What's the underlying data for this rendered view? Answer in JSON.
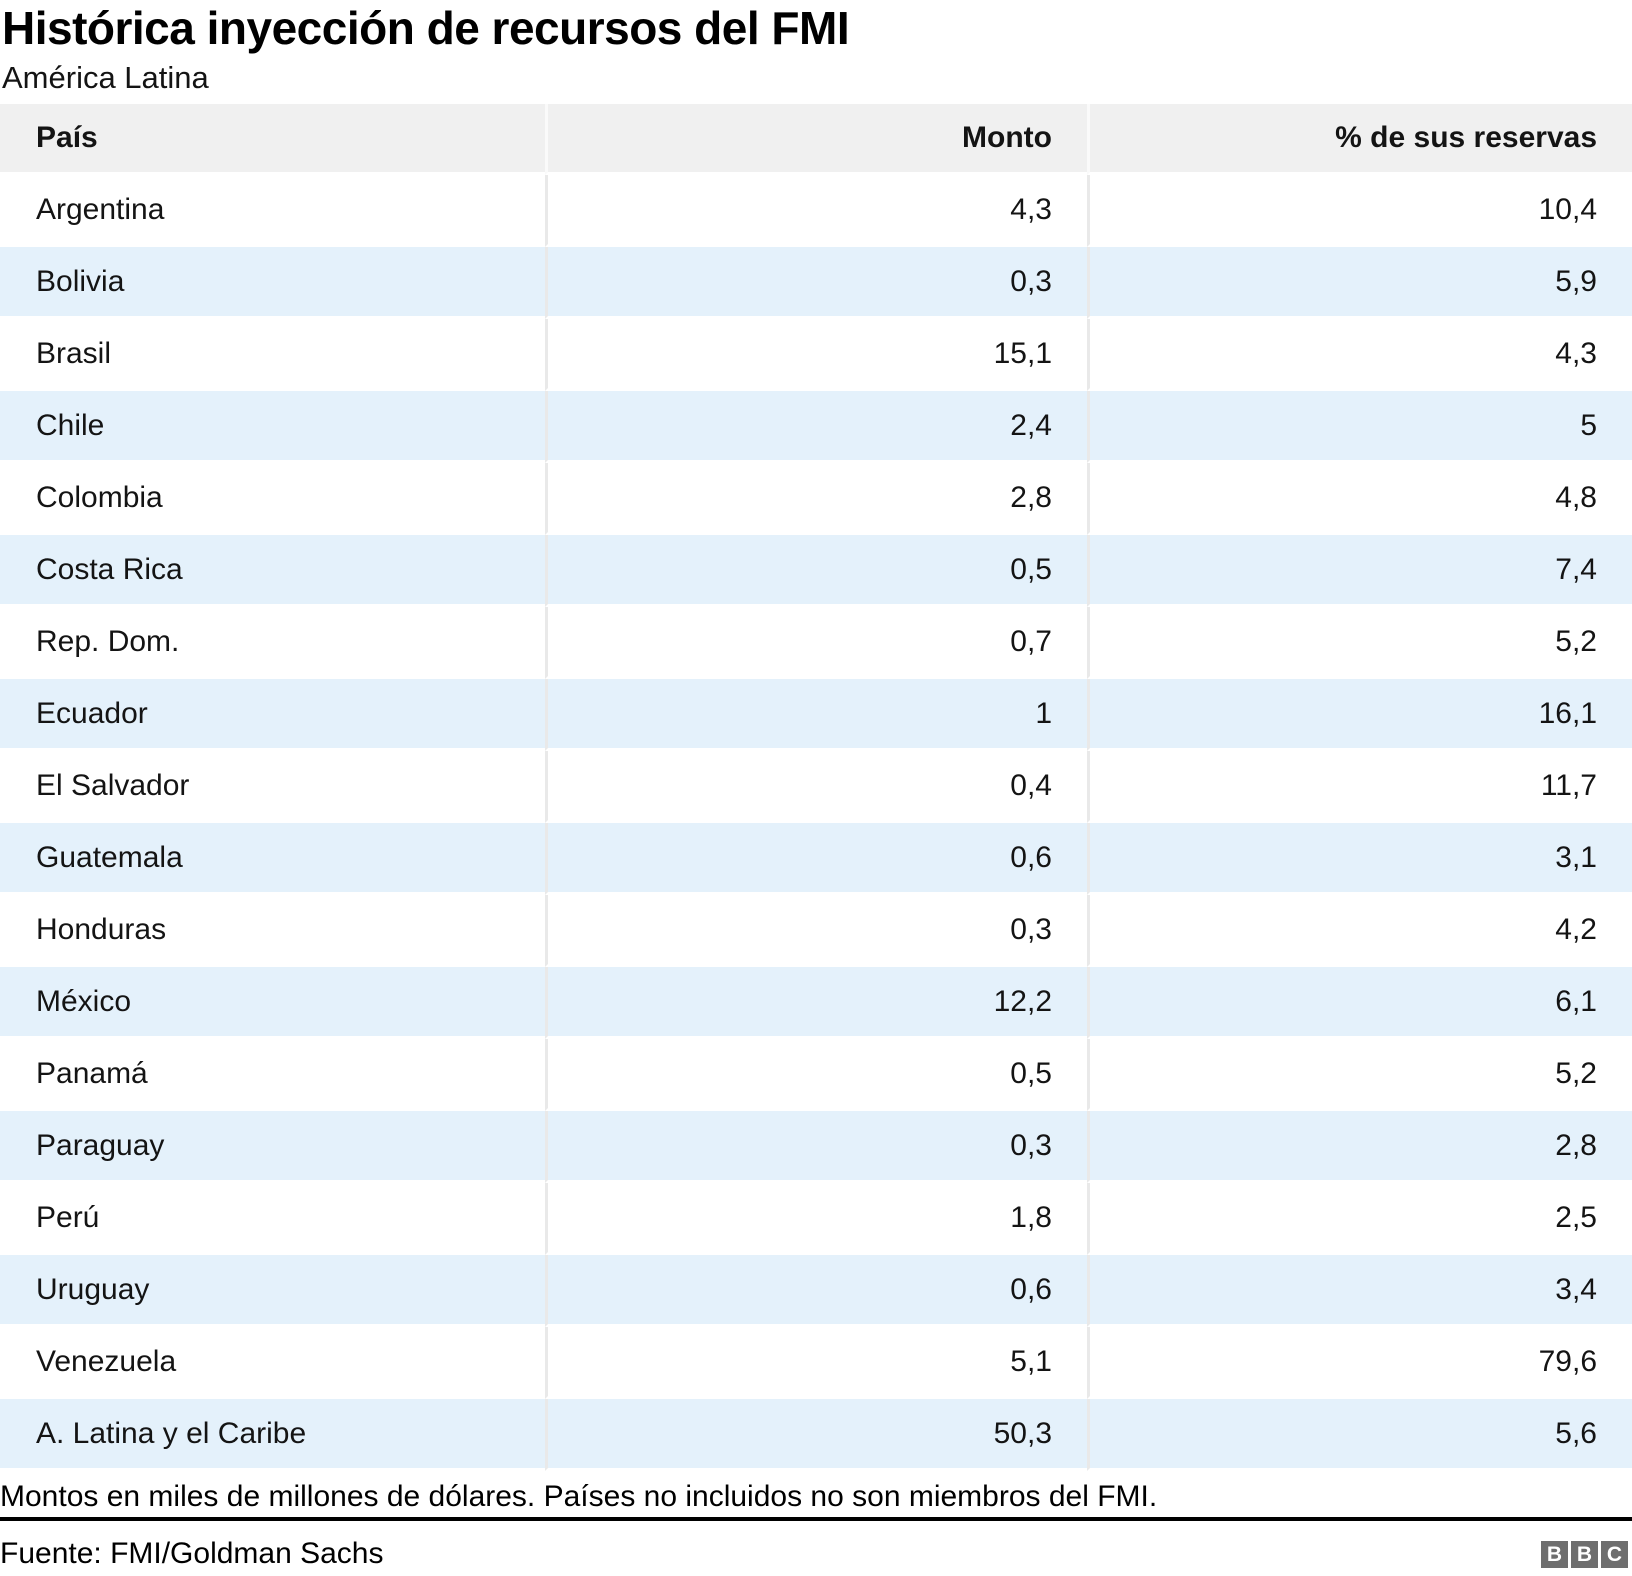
{
  "title": "Histórica inyección de recursos del FMI",
  "subtitle": "América Latina",
  "table": {
    "columns": [
      "País",
      "Monto",
      "% de sus reservas"
    ],
    "rows": [
      {
        "pais": "Argentina",
        "monto": "4,3",
        "reservas": "10,4"
      },
      {
        "pais": "Bolivia",
        "monto": "0,3",
        "reservas": "5,9"
      },
      {
        "pais": "Brasil",
        "monto": "15,1",
        "reservas": "4,3"
      },
      {
        "pais": "Chile",
        "monto": "2,4",
        "reservas": "5"
      },
      {
        "pais": "Colombia",
        "monto": "2,8",
        "reservas": "4,8"
      },
      {
        "pais": "Costa Rica",
        "monto": "0,5",
        "reservas": "7,4"
      },
      {
        "pais": "Rep. Dom.",
        "monto": "0,7",
        "reservas": "5,2"
      },
      {
        "pais": "Ecuador",
        "monto": "1",
        "reservas": "16,1"
      },
      {
        "pais": "El Salvador",
        "monto": "0,4",
        "reservas": "11,7"
      },
      {
        "pais": "Guatemala",
        "monto": "0,6",
        "reservas": "3,1"
      },
      {
        "pais": "Honduras",
        "monto": "0,3",
        "reservas": "4,2"
      },
      {
        "pais": "México",
        "monto": "12,2",
        "reservas": "6,1"
      },
      {
        "pais": "Panamá",
        "monto": "0,5",
        "reservas": "5,2"
      },
      {
        "pais": "Paraguay",
        "monto": "0,3",
        "reservas": "2,8"
      },
      {
        "pais": "Perú",
        "monto": "1,8",
        "reservas": "2,5"
      },
      {
        "pais": "Uruguay",
        "monto": "0,6",
        "reservas": "3,4"
      },
      {
        "pais": "Venezuela",
        "monto": "5,1",
        "reservas": "79,6"
      },
      {
        "pais": "A. Latina y el Caribe",
        "monto": "50,3",
        "reservas": "5,6"
      }
    ]
  },
  "chart_data": {
    "type": "table",
    "title": "Histórica inyección de recursos del FMI",
    "subtitle": "América Latina",
    "columns": [
      "País",
      "Monto",
      "% de sus reservas"
    ],
    "categories": [
      "Argentina",
      "Bolivia",
      "Brasil",
      "Chile",
      "Colombia",
      "Costa Rica",
      "Rep. Dom.",
      "Ecuador",
      "El Salvador",
      "Guatemala",
      "Honduras",
      "México",
      "Panamá",
      "Paraguay",
      "Perú",
      "Uruguay",
      "Venezuela",
      "A. Latina y el Caribe"
    ],
    "series": [
      {
        "name": "Monto",
        "values": [
          4.3,
          0.3,
          15.1,
          2.4,
          2.8,
          0.5,
          0.7,
          1,
          0.4,
          0.6,
          0.3,
          12.2,
          0.5,
          0.3,
          1.8,
          0.6,
          5.1,
          50.3
        ]
      },
      {
        "name": "% de sus reservas",
        "values": [
          10.4,
          5.9,
          4.3,
          5,
          4.8,
          7.4,
          5.2,
          16.1,
          11.7,
          3.1,
          4.2,
          6.1,
          5.2,
          2.8,
          2.5,
          3.4,
          79.6,
          5.6
        ]
      }
    ],
    "layout": {
      "row_striping": true,
      "number_alignment": "right",
      "decimal_separator": "comma"
    }
  },
  "footnote": "Montos en miles de millones de dólares. Países no incluidos no son miembros del FMI.",
  "source": "Fuente: FMI/Goldman Sachs",
  "logo": {
    "letters": [
      "B",
      "B",
      "C"
    ]
  },
  "colors": {
    "header_bg": "#f0f0f0",
    "row_alt_bg": "#e4f1fb",
    "row_bg": "#ffffff",
    "column_separator": "#e9e9e9",
    "divider": "#000000",
    "logo_gray": "#6e6e6e",
    "text": "#141414"
  }
}
